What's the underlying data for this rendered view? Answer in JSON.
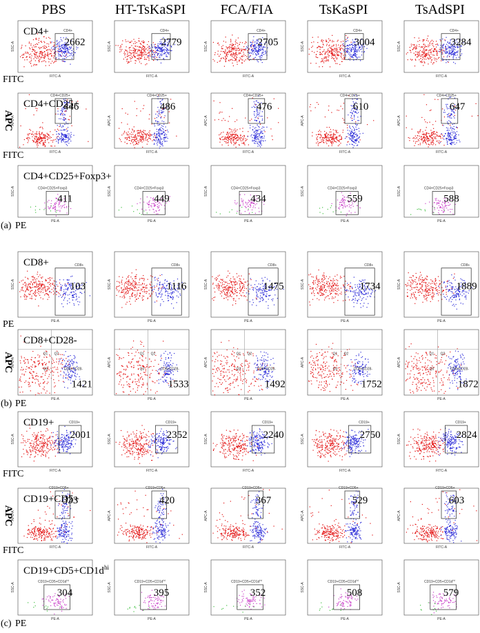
{
  "columns": [
    "PBS",
    "HT-TsKaSPI",
    "FCA/FIA",
    "TsKaSPI",
    "TsAdSPI"
  ],
  "rows": [
    {
      "label": "CD4+",
      "gate": "CD4+",
      "x_label": "FITC",
      "x_axis": "FITC-A",
      "y_axis": "SSC-A",
      "counts": [
        "2662",
        "2779",
        "2705",
        "3004",
        "3284"
      ]
    },
    {
      "label": "CD4+CD25+",
      "gate": "CD4+CD25+",
      "x_label": "FITC",
      "y_label": "APC",
      "x_axis": "FITC-A",
      "y_axis": "APC-A",
      "counts": [
        "446",
        "486",
        "476",
        "610",
        "647"
      ]
    },
    {
      "label": "CD4+CD25+Foxp3+",
      "gate": "CD4+CD25+Foxp3",
      "section": "(a)",
      "x_label": "PE",
      "x_axis": "PE-A",
      "y_axis": "SSC-A",
      "counts": [
        "411",
        "449",
        "434",
        "559",
        "588"
      ]
    },
    {
      "label": "CD8+",
      "gate": "CD8+",
      "x_label": "PE",
      "x_axis": "PE-A",
      "y_axis": "SSC-A",
      "counts": [
        "103",
        "1116",
        "1475",
        "1734",
        "1889"
      ]
    },
    {
      "label": "CD8+CD28-",
      "gate": "CD8+CD28-",
      "section": "(b)",
      "x_label": "PE",
      "y_label": "APC",
      "x_axis": "PE-A",
      "y_axis": "APC-A",
      "quadrants": [
        "Q1",
        "Q2",
        "Q3"
      ],
      "counts": [
        "1421",
        "1533",
        "1492",
        "1752",
        "1872"
      ]
    },
    {
      "label": "CD19+",
      "gate": "CD19+",
      "x_label": "FITC",
      "x_axis": "FITC-A",
      "y_axis": "SSC-A",
      "counts": [
        "2001",
        "2352",
        "2240",
        "2750",
        "2824"
      ]
    },
    {
      "label": "CD19+CD5+",
      "gate": "CD19+CD5+",
      "x_label": "FITC",
      "y_label": "APC",
      "x_axis": "FITC-A",
      "y_axis": "APC-A",
      "counts": [
        "333",
        "420",
        "367",
        "529",
        "603"
      ]
    },
    {
      "label": "CD19+CD5+CD1d",
      "label_sup": "hi",
      "gate": "CD19+CD5+CD1d",
      "gate_sup": "hi",
      "section": "(c)",
      "x_label": "PE",
      "x_axis": "PE-A",
      "y_axis": "SSC-A",
      "counts": [
        "304",
        "395",
        "352",
        "508",
        "579"
      ]
    }
  ]
}
